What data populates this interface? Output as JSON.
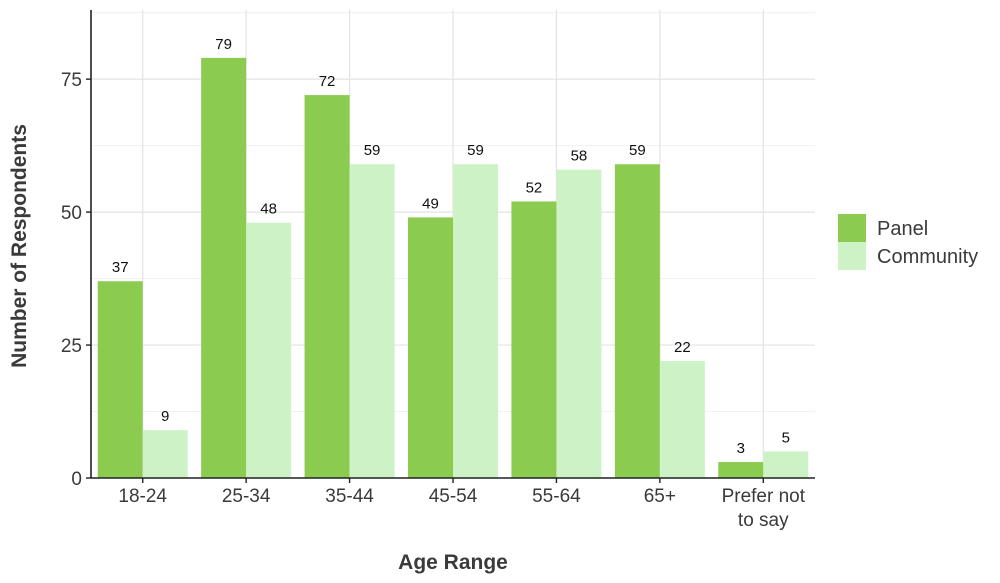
{
  "chart_data": {
    "type": "bar",
    "xlabel": "Age Range",
    "ylabel": "Number of Respondents",
    "categories": [
      [
        "18-24"
      ],
      [
        "25-34"
      ],
      [
        "35-44"
      ],
      [
        "45-54"
      ],
      [
        "55-64"
      ],
      [
        "65+"
      ],
      [
        "Prefer not",
        "to say"
      ]
    ],
    "series": [
      {
        "name": "Panel",
        "color": "#8bcc50",
        "values": [
          37,
          79,
          72,
          49,
          52,
          59,
          3
        ]
      },
      {
        "name": "Community",
        "color": "#ccf2c6",
        "values": [
          9,
          48,
          59,
          59,
          58,
          22,
          5
        ]
      }
    ],
    "ylim": [
      0,
      88
    ],
    "yticks": [
      0,
      25,
      50,
      75
    ],
    "grid": true,
    "legend_position": "right"
  }
}
